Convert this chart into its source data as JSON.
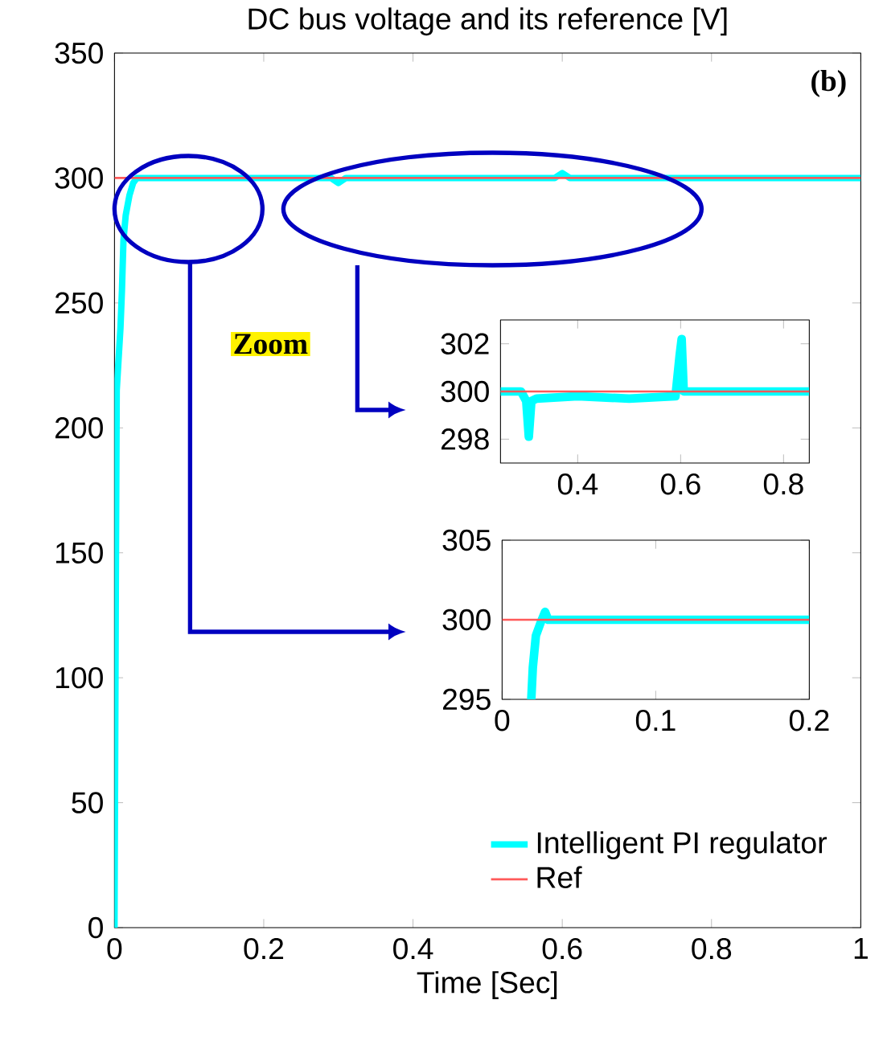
{
  "chart_data": [
    {
      "type": "line",
      "title": "DC bus voltage and its reference [V]",
      "xlabel": "Time [Sec]",
      "xlim": [
        0,
        1
      ],
      "ylim": [
        0,
        350
      ],
      "xticks": [
        0,
        0.2,
        0.4,
        0.6,
        0.8,
        1
      ],
      "yticks": [
        0,
        50,
        100,
        150,
        200,
        250,
        300,
        350
      ],
      "legend": "bottom right",
      "annotations": [
        "(b)",
        "Zoom"
      ],
      "series": [
        {
          "name": "Intelligent PI regulator",
          "color": "#00ffff",
          "x": [
            0,
            0.002,
            0.003,
            0.005,
            0.008,
            0.01,
            0.012,
            0.015,
            0.02,
            0.025,
            0.03,
            0.1,
            0.2,
            0.29,
            0.3,
            0.31,
            0.4,
            0.5,
            0.59,
            0.6,
            0.61,
            0.7,
            0.8,
            0.9,
            1
          ],
          "values": [
            0,
            150,
            215,
            225,
            240,
            255,
            275,
            285,
            293,
            298,
            300,
            300,
            300,
            300,
            298,
            300,
            300,
            300,
            300,
            302,
            300,
            300,
            300,
            300,
            300
          ]
        },
        {
          "name": "Ref",
          "color": "#ff5a5a",
          "x": [
            0,
            1
          ],
          "values": [
            300,
            300
          ]
        }
      ]
    },
    {
      "type": "line",
      "xlim": [
        0.25,
        0.85
      ],
      "ylim": [
        297,
        303
      ],
      "xticks": [
        0.4,
        0.6,
        0.8
      ],
      "yticks": [
        298,
        300,
        302
      ],
      "series": [
        {
          "color": "#00ffff",
          "x": [
            0.25,
            0.29,
            0.3,
            0.305,
            0.31,
            0.32,
            0.4,
            0.5,
            0.59,
            0.598,
            0.602,
            0.606,
            0.7,
            0.85
          ],
          "values": [
            300,
            300,
            299.6,
            298.1,
            299.6,
            299.7,
            299.8,
            299.7,
            299.8,
            301.5,
            302.2,
            300,
            300,
            300
          ]
        },
        {
          "color": "#ff5a5a",
          "x": [
            0.25,
            0.85
          ],
          "values": [
            300,
            300
          ]
        }
      ]
    },
    {
      "type": "line",
      "xlim": [
        0,
        0.2
      ],
      "ylim": [
        295,
        305
      ],
      "xticks": [
        0,
        0.1,
        0.2
      ],
      "yticks": [
        295,
        300,
        305
      ],
      "series": [
        {
          "color": "#00ffff",
          "x": [
            0.019,
            0.02,
            0.022,
            0.025,
            0.028,
            0.03,
            0.05,
            0.1,
            0.15,
            0.2
          ],
          "values": [
            295,
            297,
            299,
            299.8,
            300.5,
            300,
            300,
            300,
            300,
            300
          ]
        },
        {
          "color": "#ff5a5a",
          "x": [
            0,
            0.2
          ],
          "values": [
            300,
            300
          ]
        }
      ]
    }
  ]
}
